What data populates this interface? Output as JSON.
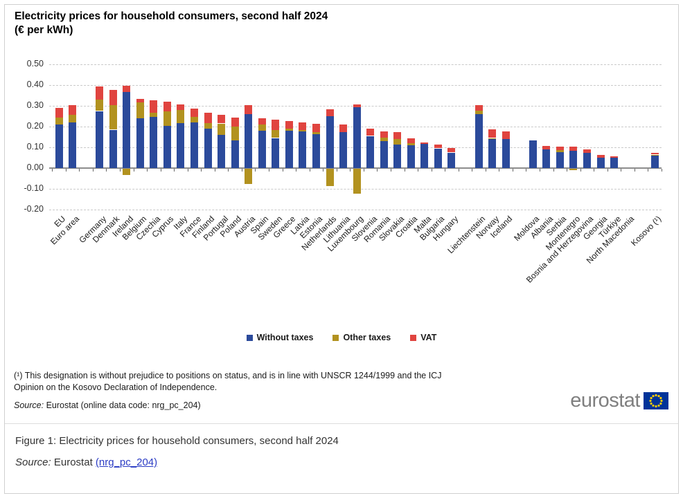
{
  "figure": {
    "title_line1": "Electricity prices for household consumers, second half 2024",
    "title_line2": "(€ per kWh)"
  },
  "colors": {
    "without_taxes": "#2b4a9b",
    "other_taxes": "#b2921f",
    "vat": "#e0443f",
    "link": "#2b3cc4",
    "logo_text": "#7f7f7f",
    "flag_blue": "#003399",
    "star_yellow": "#ffcc00"
  },
  "chart_data": {
    "type": "bar",
    "stacked": true,
    "title": "Electricity prices for household consumers, second half 2024 (€ per kWh)",
    "ylabel": "€ per kWh",
    "ylim": [
      -0.2,
      0.5
    ],
    "ytick_labels": [
      "0.50",
      "0.40",
      "0.30",
      "0.20",
      "0.10",
      "0.00",
      "-0.10",
      "-0.20"
    ],
    "grid": "horizontal-dashed",
    "legend_position": "bottom-center",
    "legend": [
      {
        "label": "Without taxes",
        "color": "#2b4a9b"
      },
      {
        "label": "Other taxes",
        "color": "#b2921f"
      },
      {
        "label": "VAT",
        "color": "#e0443f"
      }
    ],
    "countries": [
      {
        "name": "EU",
        "slot": 0,
        "without": 0.21,
        "other": 0.035,
        "vat": 0.045
      },
      {
        "name": "Euro area",
        "slot": 1,
        "without": 0.22,
        "other": 0.037,
        "vat": 0.045
      },
      {
        "name": "Germany",
        "slot": 3,
        "without": 0.275,
        "other": 0.056,
        "vat": 0.061
      },
      {
        "name": "Denmark",
        "slot": 4,
        "without": 0.185,
        "other": 0.118,
        "vat": 0.075
      },
      {
        "name": "Ireland",
        "slot": 5,
        "without": 0.368,
        "other": -0.03,
        "vat": 0.03
      },
      {
        "name": "Belgium",
        "slot": 6,
        "without": 0.241,
        "other": 0.077,
        "vat": 0.014
      },
      {
        "name": "Czechia",
        "slot": 7,
        "without": 0.248,
        "other": 0.018,
        "vat": 0.06
      },
      {
        "name": "Cyprus",
        "slot": 8,
        "without": 0.204,
        "other": 0.07,
        "vat": 0.047
      },
      {
        "name": "Italy",
        "slot": 9,
        "without": 0.218,
        "other": 0.061,
        "vat": 0.029
      },
      {
        "name": "France",
        "slot": 10,
        "without": 0.219,
        "other": 0.027,
        "vat": 0.042
      },
      {
        "name": "Finland",
        "slot": 11,
        "without": 0.189,
        "other": 0.027,
        "vat": 0.052
      },
      {
        "name": "Portugal",
        "slot": 12,
        "without": 0.159,
        "other": 0.056,
        "vat": 0.041
      },
      {
        "name": "Poland",
        "slot": 13,
        "without": 0.134,
        "other": 0.067,
        "vat": 0.044
      },
      {
        "name": "Austria",
        "slot": 14,
        "without": 0.26,
        "other": -0.072,
        "vat": 0.044
      },
      {
        "name": "Spain",
        "slot": 15,
        "without": 0.181,
        "other": 0.03,
        "vat": 0.028
      },
      {
        "name": "Sweden",
        "slot": 16,
        "without": 0.145,
        "other": 0.038,
        "vat": 0.05
      },
      {
        "name": "Greece",
        "slot": 17,
        "without": 0.179,
        "other": 0.011,
        "vat": 0.036
      },
      {
        "name": "Latvia",
        "slot": 18,
        "without": 0.178,
        "other": 0.005,
        "vat": 0.036
      },
      {
        "name": "Estonia",
        "slot": 19,
        "without": 0.163,
        "other": 0.011,
        "vat": 0.038
      },
      {
        "name": "Netherlands",
        "slot": 20,
        "without": 0.249,
        "other": -0.083,
        "vat": 0.035
      },
      {
        "name": "Lithuania",
        "slot": 21,
        "without": 0.172,
        "other": 0.0,
        "vat": 0.037
      },
      {
        "name": "Luxembourg",
        "slot": 22,
        "without": 0.292,
        "other": -0.119,
        "vat": 0.016
      },
      {
        "name": "Slovenia",
        "slot": 23,
        "without": 0.155,
        "other": 0.0,
        "vat": 0.036
      },
      {
        "name": "Romania",
        "slot": 24,
        "without": 0.13,
        "other": 0.016,
        "vat": 0.03
      },
      {
        "name": "Slovakia",
        "slot": 25,
        "without": 0.113,
        "other": 0.027,
        "vat": 0.033
      },
      {
        "name": "Croatia",
        "slot": 26,
        "without": 0.111,
        "other": 0.01,
        "vat": 0.022
      },
      {
        "name": "Malta",
        "slot": 27,
        "without": 0.116,
        "other": 0.0,
        "vat": 0.006
      },
      {
        "name": "Bulgaria",
        "slot": 28,
        "without": 0.095,
        "other": 0.0,
        "vat": 0.019
      },
      {
        "name": "Hungary",
        "slot": 29,
        "without": 0.075,
        "other": 0.0,
        "vat": 0.021
      },
      {
        "name": "Liechtenstein",
        "slot": 31,
        "without": 0.261,
        "other": 0.017,
        "vat": 0.025
      },
      {
        "name": "Norway",
        "slot": 32,
        "without": 0.139,
        "other": 0.006,
        "vat": 0.042
      },
      {
        "name": "Iceland",
        "slot": 33,
        "without": 0.14,
        "other": 0.0,
        "vat": 0.038
      },
      {
        "name": "Moldova",
        "slot": 35,
        "without": 0.133,
        "other": 0.0,
        "vat": 0.0
      },
      {
        "name": "Albania",
        "slot": 36,
        "without": 0.09,
        "other": 0.0,
        "vat": 0.017
      },
      {
        "name": "Serbia",
        "slot": 37,
        "without": 0.076,
        "other": 0.011,
        "vat": 0.016
      },
      {
        "name": "Montenegro",
        "slot": 38,
        "without": 0.083,
        "other": -0.007,
        "vat": 0.019
      },
      {
        "name": "Bosnia and Herzegovina",
        "slot": 39,
        "without": 0.073,
        "other": 0.0,
        "vat": 0.016
      },
      {
        "name": "Georgia",
        "slot": 40,
        "without": 0.051,
        "other": 0.0,
        "vat": 0.011
      },
      {
        "name": "Türkiye",
        "slot": 41,
        "without": 0.051,
        "other": 0.0,
        "vat": 0.006
      },
      {
        "name": "North Macedonia",
        "slot": 42,
        "without": null,
        "other": null,
        "vat": null
      },
      {
        "name": "Kosovo (¹)",
        "slot": 44,
        "without": 0.063,
        "other": 0.002,
        "vat": 0.008
      }
    ]
  },
  "footnote": {
    "line1": "(¹) This designation is without prejudice to positions on status, and is in line with UNSCR 1244/1999 and the ICJ",
    "line2": "Opinion on the Kosovo Declaration of Independence.",
    "source_italic": "Source:",
    "source_text": " Eurostat (online data code: nrg_pc_204)"
  },
  "logo": {
    "text": "eurostat"
  },
  "caption": {
    "figure_text": "Figure 1: Electricity prices for household consumers, second half 2024",
    "source_italic": "Source:",
    "source_plain": " Eurostat ",
    "link_text": "(nrg_pc_204)"
  }
}
